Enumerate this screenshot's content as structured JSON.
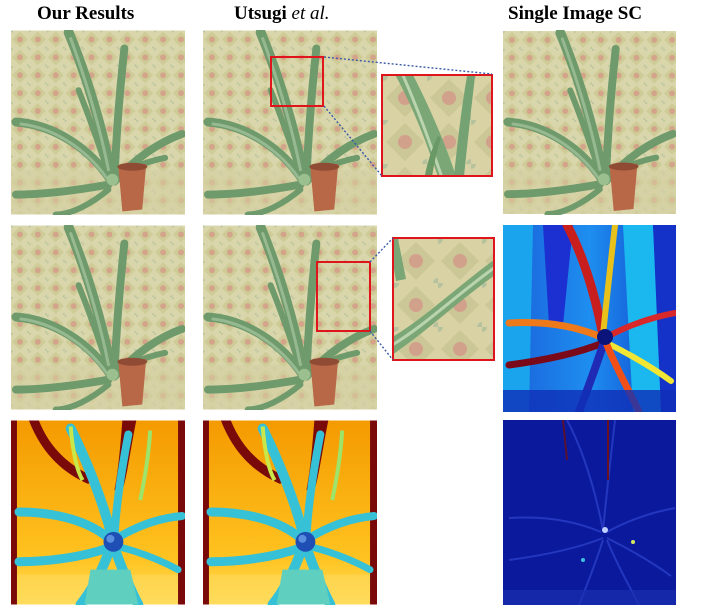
{
  "columns": {
    "col1": {
      "title": "Our Results"
    },
    "col2": {
      "title_name": "Utsugi",
      "title_suffix": "et al."
    },
    "col3": {
      "title": "Single Image SC"
    }
  },
  "colors": {
    "zoom_box": "#e0141b",
    "connector": "#3a5aa8",
    "fabric": "#d8d3a5",
    "plant": "#6f9a6c",
    "pot": "#b9674a",
    "depth_bg_top": "#f7a300",
    "depth_bg_bottom": "#ffd23a",
    "depth_near": "#7a0a0a",
    "depth_leaf": "#33c2d8",
    "error_bg": "#0b1f9e"
  }
}
